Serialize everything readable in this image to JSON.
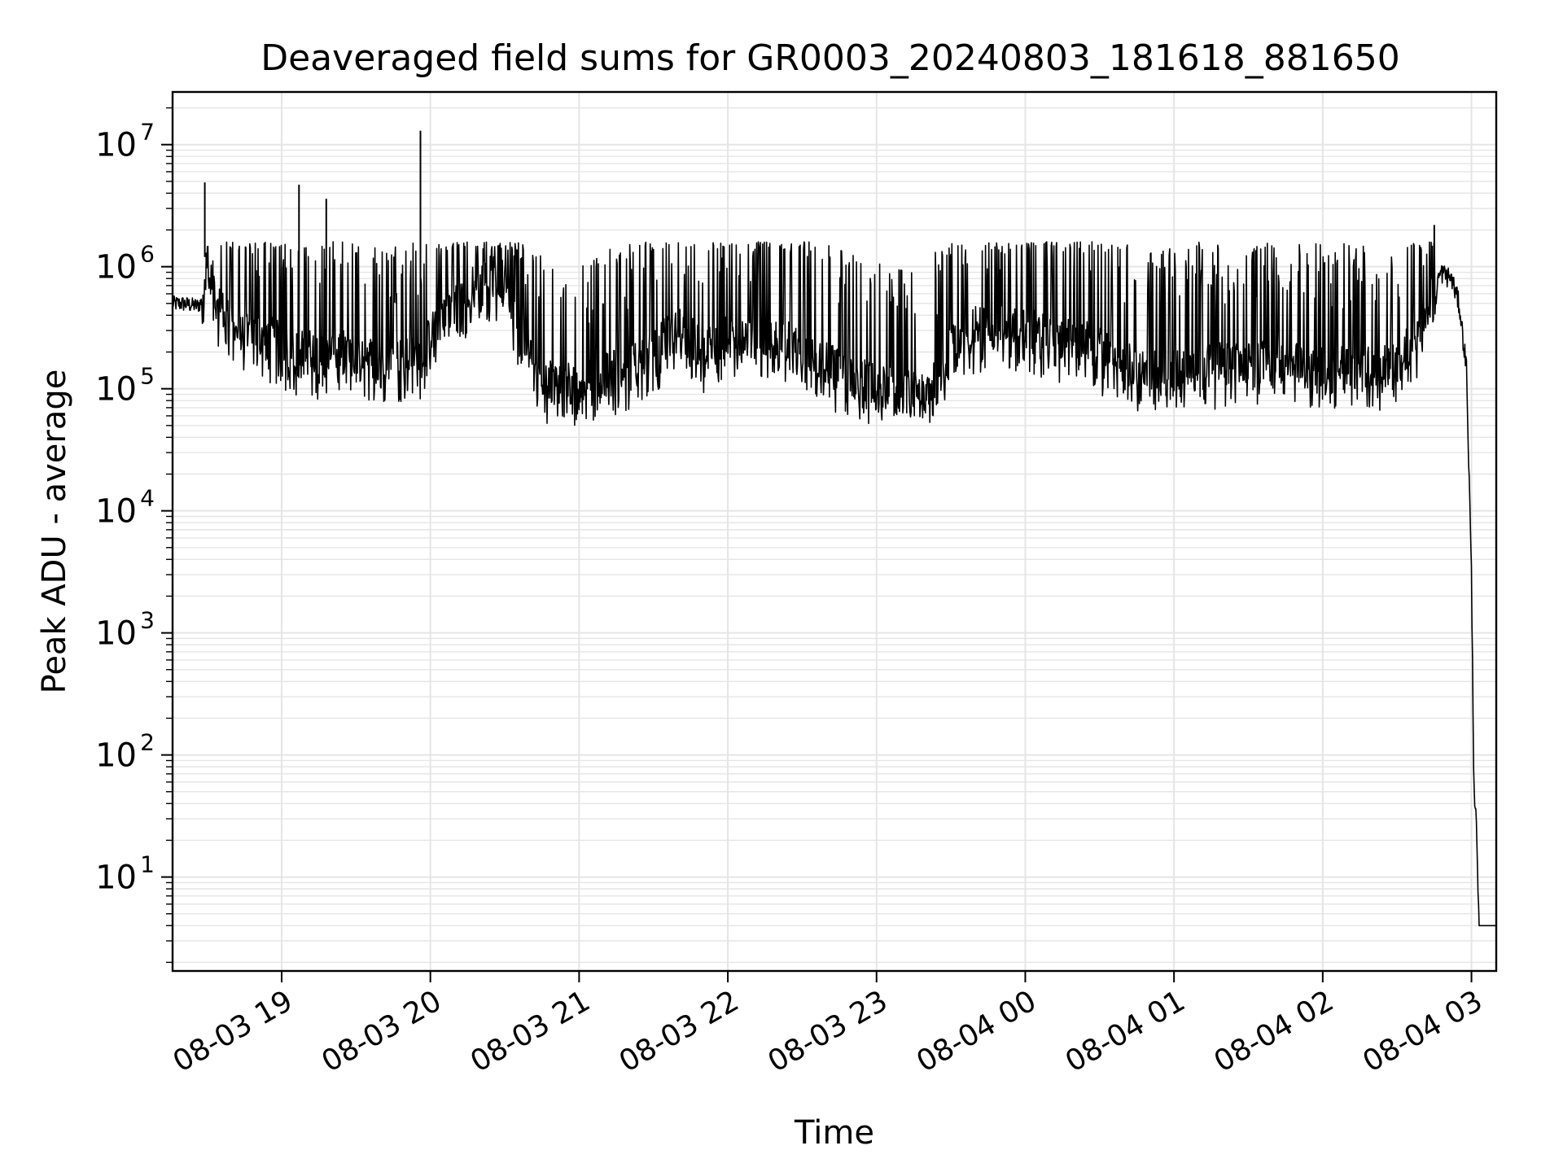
{
  "chart_data": {
    "type": "line",
    "title": "Deaveraged field sums for GR0003_20240803_181618_881650",
    "xlabel": "Time",
    "ylabel": "Peak ADU - average",
    "xlim": [
      "2024-08-03 18:16",
      "2024-08-04 03:10"
    ],
    "ylim": [
      1.7,
      27000000
    ],
    "yscale": "log",
    "grid": true,
    "line_color": "#000000",
    "grid_color": "#e5e5e5",
    "x_ticks": [
      "08-03 19",
      "08-03 20",
      "08-03 21",
      "08-03 22",
      "08-03 23",
      "08-04 00",
      "08-04 01",
      "08-04 02",
      "08-04 03"
    ],
    "x_tick_times": [
      "2024-08-03 19:00",
      "2024-08-03 20:00",
      "2024-08-03 21:00",
      "2024-08-03 22:00",
      "2024-08-03 23:00",
      "2024-08-04 00:00",
      "2024-08-04 01:00",
      "2024-08-04 02:00",
      "2024-08-04 03:00"
    ],
    "y_ticks": [
      {
        "value": 10,
        "base": "10",
        "exp": "1"
      },
      {
        "value": 100,
        "base": "10",
        "exp": "2"
      },
      {
        "value": 1000,
        "base": "10",
        "exp": "3"
      },
      {
        "value": 10000,
        "base": "10",
        "exp": "4"
      },
      {
        "value": 100000,
        "base": "10",
        "exp": "5"
      },
      {
        "value": 1000000,
        "base": "10",
        "exp": "6"
      },
      {
        "value": 10000000,
        "base": "10",
        "exp": "7"
      }
    ],
    "series": [
      {
        "x": [
          "2024-08-03 18:16",
          "2024-08-03 18:20",
          "2024-08-03 18:26",
          "2024-08-03 18:28",
          "2024-08-03 18:29",
          "2024-08-03 18:30",
          "2024-08-03 18:31",
          "2024-08-03 18:33",
          "2024-08-03 18:36",
          "2024-08-03 18:40",
          "2024-08-03 18:45",
          "2024-08-03 18:50",
          "2024-08-03 18:55",
          "2024-08-03 19:00",
          "2024-08-03 19:05",
          "2024-08-03 19:07",
          "2024-08-03 19:10",
          "2024-08-03 19:15",
          "2024-08-03 19:18",
          "2024-08-03 19:20",
          "2024-08-03 19:30",
          "2024-08-03 19:40",
          "2024-08-03 19:50",
          "2024-08-03 19:56",
          "2024-08-03 20:00",
          "2024-08-03 20:05",
          "2024-08-03 20:15",
          "2024-08-03 20:20",
          "2024-08-03 20:25",
          "2024-08-03 20:30",
          "2024-08-03 20:35",
          "2024-08-03 20:45",
          "2024-08-03 20:55",
          "2024-08-03 21:00",
          "2024-08-03 21:10",
          "2024-08-03 21:20",
          "2024-08-03 21:30",
          "2024-08-03 21:40",
          "2024-08-03 21:50",
          "2024-08-03 22:00",
          "2024-08-03 22:10",
          "2024-08-03 22:20",
          "2024-08-03 22:30",
          "2024-08-03 22:40",
          "2024-08-03 22:50",
          "2024-08-03 23:00",
          "2024-08-03 23:10",
          "2024-08-03 23:20",
          "2024-08-03 23:30",
          "2024-08-03 23:40",
          "2024-08-03 23:50",
          "2024-08-04 00:00",
          "2024-08-04 00:10",
          "2024-08-04 00:20",
          "2024-08-04 00:30",
          "2024-08-04 00:40",
          "2024-08-04 00:50",
          "2024-08-04 01:00",
          "2024-08-04 01:10",
          "2024-08-04 01:20",
          "2024-08-04 01:30",
          "2024-08-04 01:40",
          "2024-08-04 01:50",
          "2024-08-04 02:00",
          "2024-08-04 02:10",
          "2024-08-04 02:20",
          "2024-08-04 02:30",
          "2024-08-04 02:40",
          "2024-08-04 02:45",
          "2024-08-04 02:48",
          "2024-08-04 02:52",
          "2024-08-04 02:55",
          "2024-08-04 02:58",
          "2024-08-04 03:00",
          "2024-08-04 03:01",
          "2024-08-04 03:02",
          "2024-08-04 03:03",
          "2024-08-04 03:04",
          "2024-08-04 03:10"
        ],
        "values": [
          500000,
          500000,
          480000,
          520000,
          1200000,
          1100000,
          900000,
          600000,
          400000,
          350000,
          300000,
          250000,
          250000,
          220000,
          200000,
          180000,
          200000,
          180000,
          170000,
          200000,
          180000,
          170000,
          160000,
          180000,
          250000,
          400000,
          600000,
          700000,
          800000,
          700000,
          300000,
          120000,
          100000,
          110000,
          120000,
          150000,
          200000,
          300000,
          200000,
          250000,
          250000,
          250000,
          200000,
          150000,
          120000,
          100000,
          90000,
          90000,
          200000,
          300000,
          300000,
          300000,
          250000,
          250000,
          200000,
          150000,
          130000,
          130000,
          150000,
          150000,
          150000,
          180000,
          150000,
          150000,
          150000,
          140000,
          150000,
          300000,
          700000,
          900000,
          800000,
          500000,
          150000,
          3000,
          60,
          25,
          4,
          4,
          4
        ]
      }
    ],
    "spikes": {
      "times": [
        "2024-08-03 18:29",
        "2024-08-03 19:07",
        "2024-08-03 19:18",
        "2024-08-03 19:56",
        "2024-08-04 02:45"
      ],
      "values": [
        4900000,
        4700000,
        3600000,
        13000000,
        2200000
      ]
    }
  }
}
